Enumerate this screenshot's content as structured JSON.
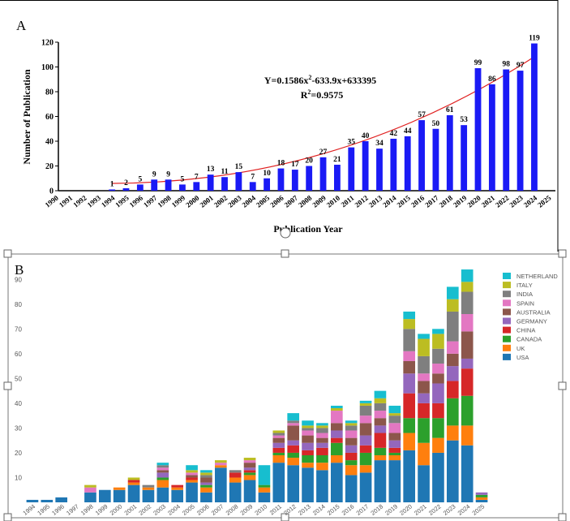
{
  "chart_data": [
    {
      "type": "bar",
      "panel_label": "A",
      "y_label": "Number of Publication",
      "x_label": "Publication Year",
      "equation_parts": [
        "Y=0.1586x",
        "2",
        "-633.9x+633395"
      ],
      "r2_parts": [
        "R",
        "2",
        "=0.9575"
      ],
      "categories": [
        "1990",
        "1991",
        "1992",
        "1993",
        "1994",
        "1995",
        "1996",
        "1997",
        "1998",
        "1999",
        "2000",
        "2001",
        "2002",
        "2003",
        "2004",
        "2005",
        "2006",
        "2007",
        "2008",
        "2009",
        "2010",
        "2011",
        "2012",
        "2013",
        "2014",
        "2015",
        "2016",
        "2017",
        "2018",
        "2019",
        "2020",
        "2021",
        "2022",
        "2023",
        "2024",
        "2025"
      ],
      "values": [
        null,
        null,
        null,
        null,
        1,
        2,
        5,
        9,
        9,
        5,
        7,
        13,
        11,
        15,
        7,
        10,
        18,
        17,
        20,
        27,
        21,
        35,
        40,
        34,
        42,
        44,
        57,
        50,
        61,
        53,
        99,
        86,
        98,
        97,
        119,
        null
      ],
      "color": "#1a1af5",
      "ylim": [
        0,
        120
      ],
      "yticks": [
        0,
        20,
        40,
        60,
        80,
        100,
        120
      ]
    },
    {
      "type": "stacked_bar",
      "panel_label": "B",
      "categories": [
        "1994",
        "1995",
        "1996",
        "1997",
        "1998",
        "1999",
        "2000",
        "2001",
        "2002",
        "2003",
        "2004",
        "2005",
        "2006",
        "2007",
        "2008",
        "2009",
        "2010",
        "2011",
        "2012",
        "2013",
        "2014",
        "2015",
        "2016",
        "2017",
        "2018",
        "2019",
        "2020",
        "2021",
        "2022",
        "2023",
        "2024",
        "2025"
      ],
      "series": [
        {
          "name": "USA",
          "color": "#1f77b4",
          "values": [
            1,
            1,
            2,
            null,
            4,
            5,
            5,
            7,
            5,
            6,
            5,
            8,
            4,
            14,
            8,
            9,
            4,
            16,
            15,
            14,
            13,
            16,
            11,
            12,
            17,
            17,
            21,
            15,
            20,
            25,
            23,
            1
          ]
        },
        {
          "name": "UK",
          "color": "#ff7f0e",
          "values": [
            0,
            0,
            0,
            null,
            0,
            0,
            1,
            1,
            1,
            3,
            1,
            1,
            2,
            1,
            2,
            2,
            2,
            3,
            3,
            2,
            3,
            3,
            4,
            3,
            2,
            2,
            7,
            9,
            6,
            6,
            8,
            1
          ]
        },
        {
          "name": "CANADA",
          "color": "#2ca02c",
          "values": [
            0,
            0,
            0,
            null,
            0,
            0,
            0,
            0,
            0,
            1,
            0,
            0,
            1,
            0,
            0,
            1,
            1,
            1,
            2,
            3,
            3,
            5,
            2,
            5,
            3,
            1,
            6,
            10,
            8,
            11,
            12,
            1
          ]
        },
        {
          "name": "CHINA",
          "color": "#d62728",
          "values": [
            0,
            0,
            0,
            null,
            0,
            0,
            0,
            1,
            0,
            0,
            1,
            1,
            0,
            0,
            2,
            1,
            0,
            2,
            3,
            2,
            3,
            2,
            3,
            3,
            6,
            2,
            10,
            6,
            6,
            7,
            11,
            0
          ]
        },
        {
          "name": "GERMANY",
          "color": "#9467bd",
          "values": [
            0,
            0,
            0,
            null,
            0,
            0,
            0,
            0,
            0,
            2,
            0,
            0,
            1,
            0,
            0,
            1,
            0,
            2,
            2,
            3,
            2,
            3,
            3,
            4,
            3,
            3,
            8,
            4,
            8,
            6,
            4,
            1
          ]
        },
        {
          "name": "AUSTRALIA",
          "color": "#8c564b",
          "values": [
            0,
            0,
            0,
            null,
            0,
            0,
            0,
            0,
            0,
            1,
            0,
            1,
            2,
            0,
            0,
            2,
            0,
            2,
            6,
            3,
            2,
            3,
            3,
            5,
            3,
            3,
            5,
            5,
            4,
            5,
            11,
            0
          ]
        },
        {
          "name": "SPAIN",
          "color": "#e377c2",
          "values": [
            0,
            0,
            0,
            null,
            2,
            0,
            0,
            0,
            0,
            1,
            0,
            1,
            0,
            1,
            0,
            1,
            0,
            1,
            1,
            2,
            2,
            5,
            3,
            3,
            3,
            4,
            4,
            3,
            4,
            5,
            7,
            0
          ]
        },
        {
          "name": "INDIA",
          "color": "#7f7f7f",
          "values": [
            0,
            0,
            0,
            null,
            0,
            0,
            0,
            0,
            1,
            1,
            0,
            0,
            1,
            0,
            1,
            0,
            0,
            1,
            1,
            1,
            2,
            0,
            2,
            4,
            3,
            3,
            9,
            7,
            6,
            12,
            9,
            0
          ]
        },
        {
          "name": "ITALY",
          "color": "#bcbd22",
          "values": [
            0,
            0,
            0,
            null,
            1,
            0,
            0,
            1,
            0,
            0,
            0,
            1,
            1,
            1,
            0,
            1,
            0,
            1,
            0,
            1,
            1,
            1,
            1,
            1,
            2,
            1,
            4,
            7,
            6,
            5,
            4,
            0
          ]
        },
        {
          "name": "NETHERLAND",
          "color": "#17becf",
          "values": [
            0,
            0,
            0,
            null,
            0,
            0,
            0,
            0,
            0,
            1,
            0,
            2,
            1,
            0,
            0,
            0,
            8,
            0,
            3,
            2,
            1,
            1,
            1,
            1,
            3,
            3,
            3,
            2,
            2,
            5,
            5,
            0
          ]
        }
      ],
      "ylim": [
        0,
        95
      ],
      "yticks": [
        10,
        20,
        30,
        40,
        50,
        60,
        70,
        80,
        90
      ]
    }
  ]
}
